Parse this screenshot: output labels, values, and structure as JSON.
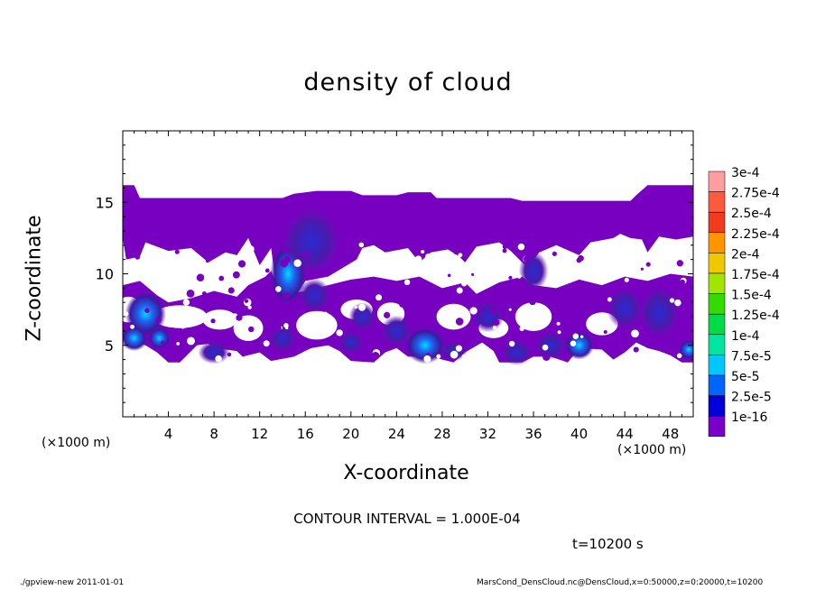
{
  "chart_data": {
    "type": "heatmap",
    "title": "density of cloud",
    "xlabel": "X-coordinate",
    "ylabel": "Z-coordinate",
    "x_unit": "(×1000 m)",
    "y_unit": "(×1000 m)",
    "xlim": [
      0,
      50
    ],
    "ylim": [
      0,
      20
    ],
    "x_ticks": [
      "4",
      "8",
      "12",
      "16",
      "20",
      "24",
      "28",
      "32",
      "36",
      "40",
      "44",
      "48"
    ],
    "y_ticks": [
      "5",
      "10",
      "15"
    ],
    "colorbar": {
      "levels": [
        "3e-4",
        "2.75e-4",
        "2.5e-4",
        "2.25e-4",
        "2e-4",
        "1.75e-4",
        "1.5e-4",
        "1.25e-4",
        "1e-4",
        "7.5e-5",
        "5e-5",
        "2.5e-5",
        "1e-16"
      ],
      "colors": [
        "#ff9ea0",
        "#ff5a3c",
        "#f03c1e",
        "#ff9600",
        "#f0c800",
        "#a0e600",
        "#32dc00",
        "#00dc46",
        "#00e6a0",
        "#00c8ff",
        "#0064ff",
        "#0000dc",
        "#7800c8"
      ]
    },
    "field_colors": {
      "base": "#7800c0",
      "mid": "#5a14b4",
      "dark": "#3a1aa0",
      "blue": "#1e3cdc",
      "lightblue": "#00a0f0",
      "cyan": "#00dcff"
    }
  },
  "contour_interval": "CONTOUR INTERVAL = 1.000E-04",
  "time_label": "t=10200 s",
  "footer_left": "./gpview-new   2011-01-01",
  "footer_right": "MarsCond_DensCloud.nc@DensCloud,x=0:50000,z=0:20000,t=10200"
}
